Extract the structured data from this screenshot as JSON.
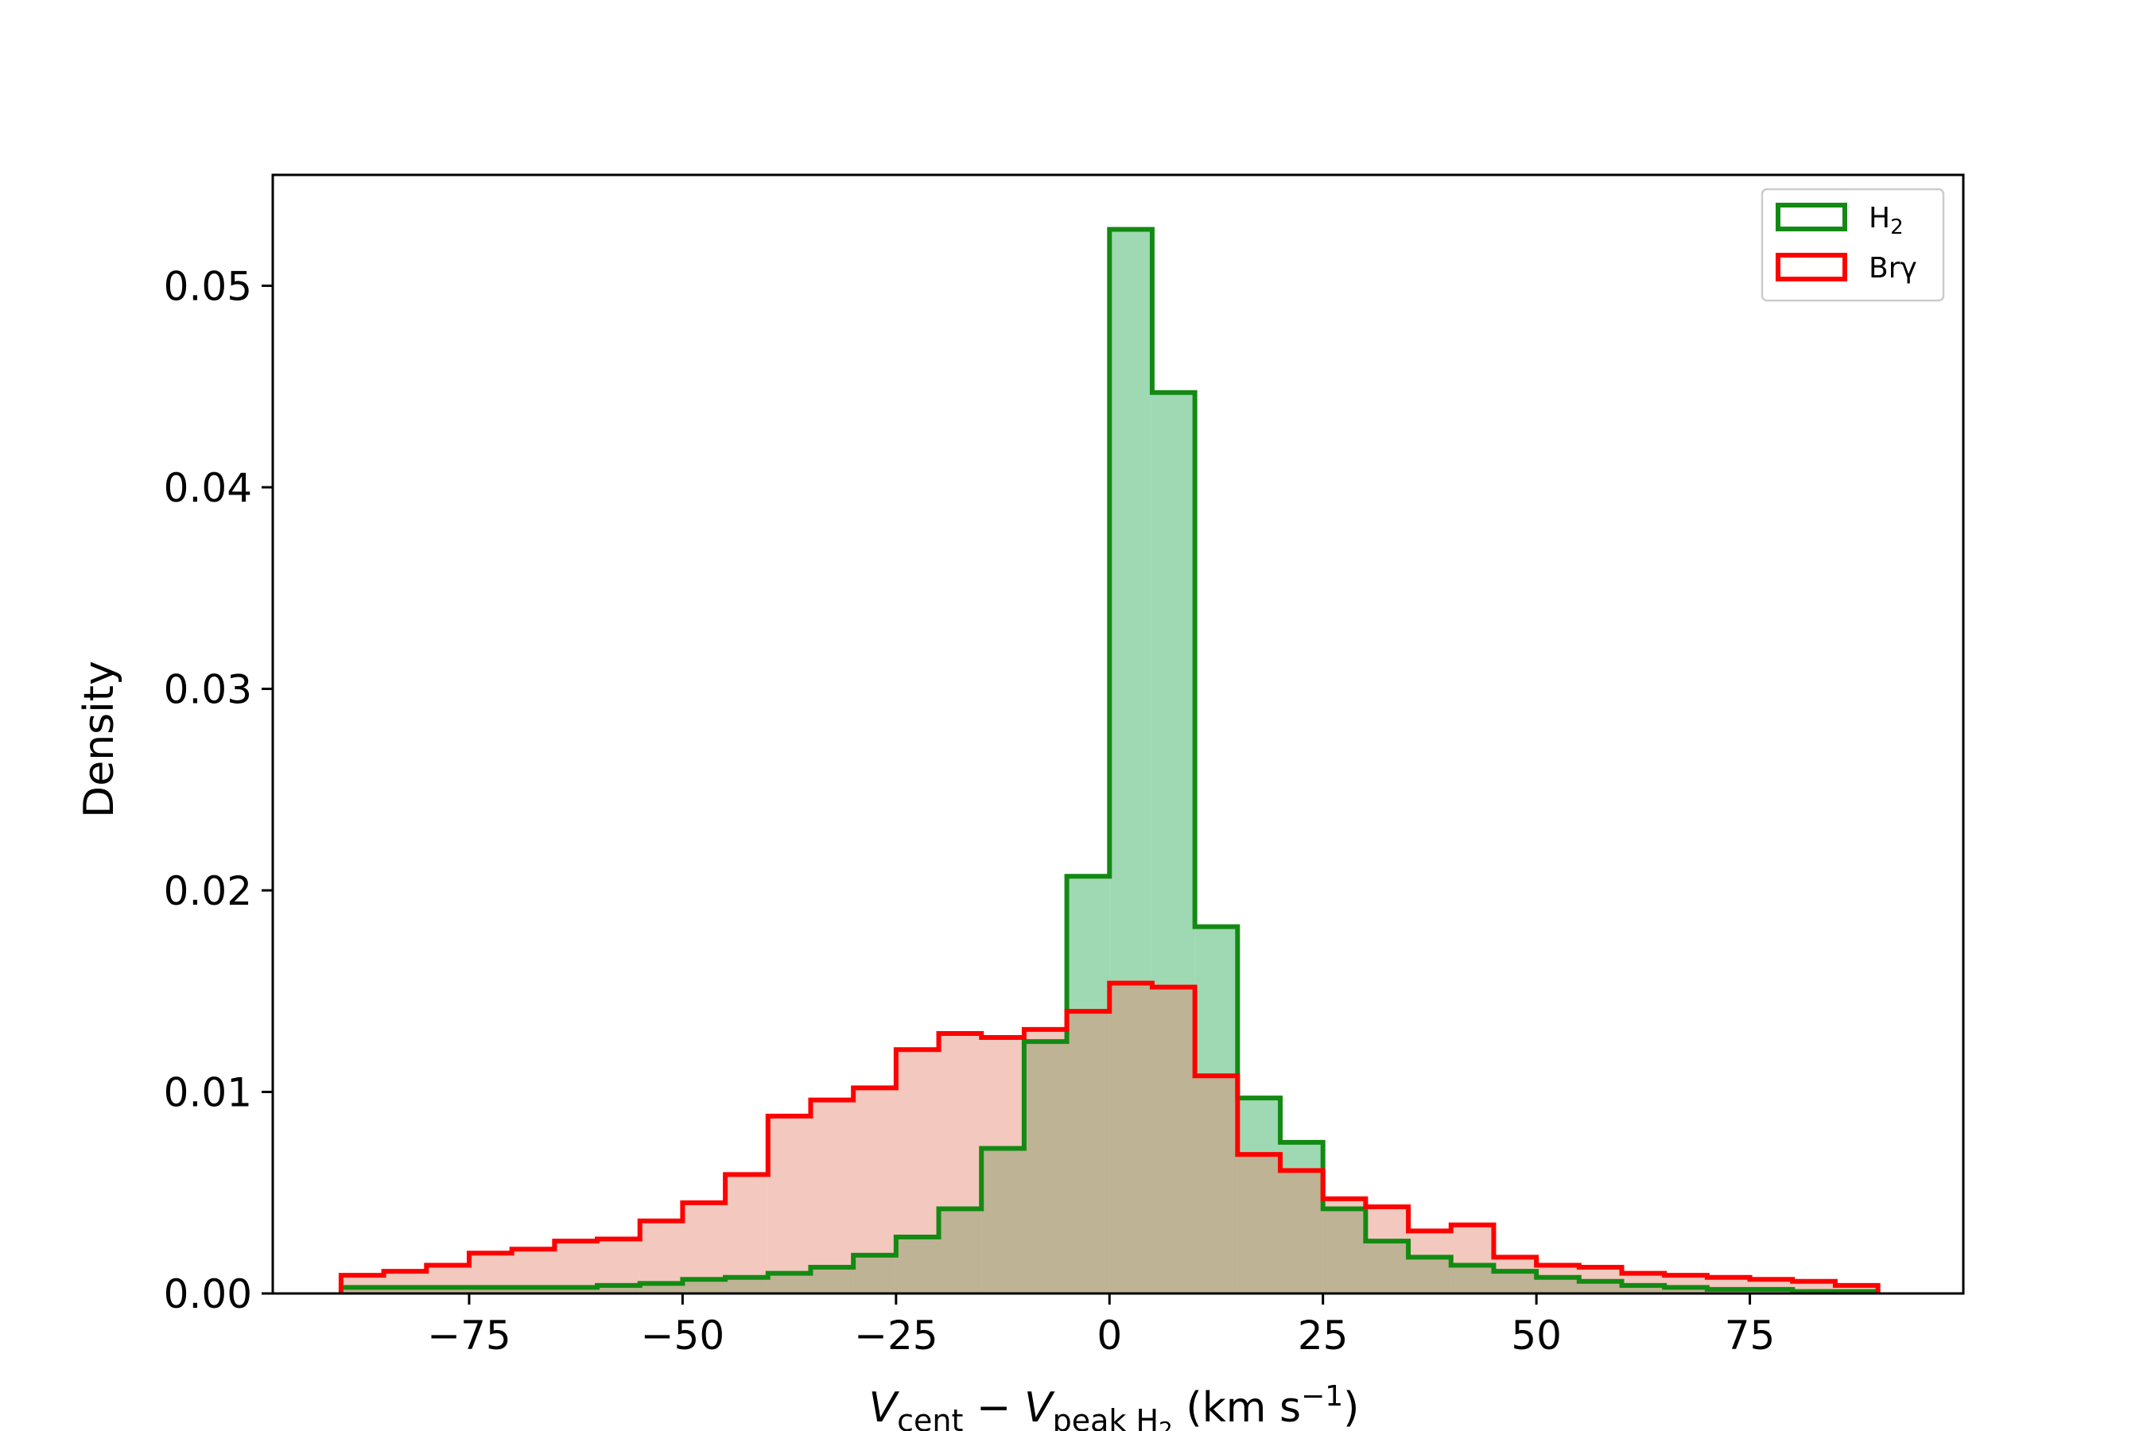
{
  "chart_data": {
    "type": "histogram",
    "xlabel": {
      "main": "V",
      "sub1": "cent",
      "minus": " − ",
      "sub2": "peak H",
      "sub2sub": "2",
      "units_prefix": " (km s",
      "units_sup": "−1",
      "units_suffix": ")"
    },
    "ylabel": "Density",
    "xlim": [
      -98,
      100
    ],
    "ylim": [
      0,
      0.0555
    ],
    "xticks": [
      -75,
      -50,
      -25,
      0,
      25,
      50,
      75
    ],
    "xtick_labels": [
      "−75",
      "−50",
      "−25",
      "0",
      "25",
      "50",
      "75"
    ],
    "yticks": [
      0,
      0.01,
      0.02,
      0.03,
      0.04,
      0.05
    ],
    "ytick_labels": [
      "0.00",
      "0.01",
      "0.02",
      "0.03",
      "0.04",
      "0.05"
    ],
    "bin_edges": [
      -90,
      -85,
      -80,
      -75,
      -70,
      -65,
      -60,
      -55,
      -50,
      -45,
      -40,
      -35,
      -30,
      -25,
      -20,
      -15,
      -10,
      -5,
      0,
      5,
      10,
      15,
      20,
      25,
      30,
      35,
      40,
      45,
      50,
      55,
      60,
      65,
      70,
      75,
      80,
      85,
      90
    ],
    "legend_position": "top-right",
    "series": [
      {
        "name": "H",
        "name_sub": "2",
        "edge_color": "#138a13",
        "fill_color": "#6cc48b",
        "fill_opacity": 0.65,
        "values": [
          0.0003,
          0.0003,
          0.0003,
          0.0003,
          0.0003,
          0.0003,
          0.0004,
          0.0005,
          0.0007,
          0.0008,
          0.001,
          0.0013,
          0.0019,
          0.0028,
          0.0042,
          0.0072,
          0.0125,
          0.0207,
          0.0528,
          0.0447,
          0.0182,
          0.0097,
          0.0075,
          0.0042,
          0.0026,
          0.0018,
          0.0014,
          0.0011,
          0.0008,
          0.0006,
          0.0004,
          0.0003,
          0.0002,
          0.0002,
          0.0001,
          0.0001
        ]
      },
      {
        "name": "Brγ",
        "name_sub": "",
        "edge_color": "#ff0000",
        "fill_color": "#e5866f",
        "fill_opacity": 0.45,
        "values": [
          0.0009,
          0.0011,
          0.0014,
          0.002,
          0.0022,
          0.0026,
          0.0027,
          0.0036,
          0.0045,
          0.0059,
          0.0088,
          0.0096,
          0.0102,
          0.0121,
          0.0129,
          0.0127,
          0.0131,
          0.014,
          0.0154,
          0.0152,
          0.0108,
          0.0069,
          0.0061,
          0.0047,
          0.0043,
          0.0031,
          0.0034,
          0.0018,
          0.0014,
          0.0013,
          0.001,
          0.0009,
          0.0008,
          0.0007,
          0.0006,
          0.0004
        ]
      }
    ]
  }
}
